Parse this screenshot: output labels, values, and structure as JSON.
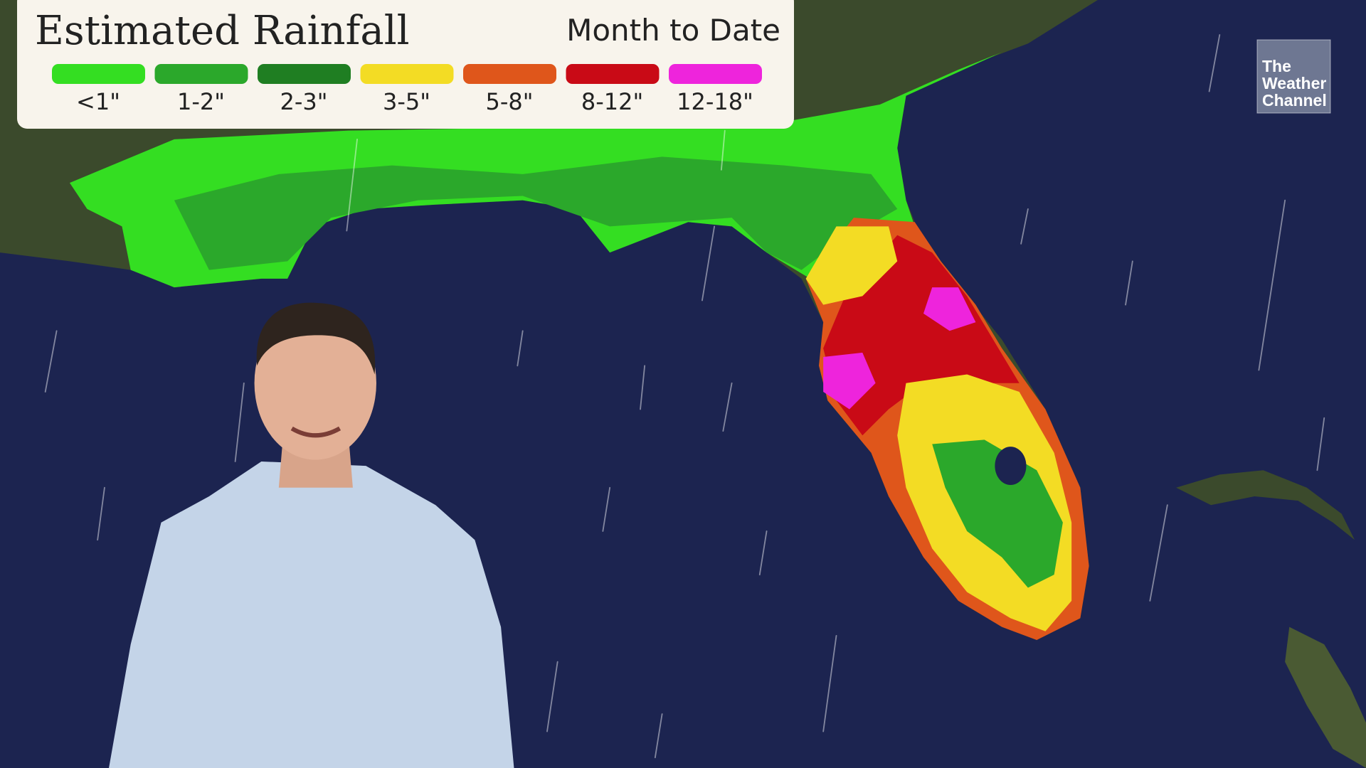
{
  "header": {
    "title": "Estimated Rainfall",
    "subtitle": "Month to Date"
  },
  "legend": {
    "items": [
      {
        "label": "<1\"",
        "color": "#34de22"
      },
      {
        "label": "1-2\"",
        "color": "#2ba82b"
      },
      {
        "label": "2-3\"",
        "color": "#1f7e22"
      },
      {
        "label": "3-5\"",
        "color": "#f3dc24"
      },
      {
        "label": "5-8\"",
        "color": "#df561b"
      },
      {
        "label": "8-12\"",
        "color": "#c90a16"
      },
      {
        "label": "12-18\"",
        "color": "#ee24dc"
      }
    ]
  },
  "logo": {
    "lines": [
      "The",
      "Weather",
      "Channel"
    ]
  }
}
